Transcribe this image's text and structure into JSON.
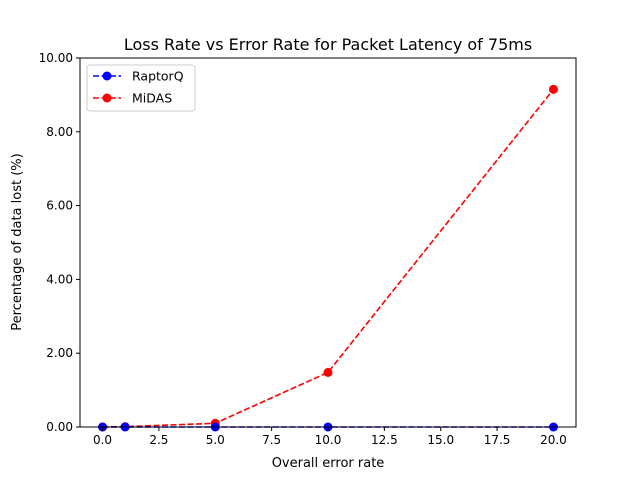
{
  "chart_data": {
    "type": "line",
    "title": "Loss Rate vs Error Rate for Packet Latency of 75ms",
    "xlabel": "Overall error rate",
    "ylabel": "Percentage of data lost (%)",
    "xlim": [
      -1.0,
      21.0
    ],
    "ylim": [
      0.0,
      10.0
    ],
    "x_ticks": [
      0.0,
      2.5,
      5.0,
      7.5,
      10.0,
      12.5,
      15.0,
      17.5,
      20.0
    ],
    "x_tick_labels": [
      "0.0",
      "2.5",
      "5.0",
      "7.5",
      "10.0",
      "12.5",
      "15.0",
      "17.5",
      "20.0"
    ],
    "y_ticks": [
      0.0,
      2.0,
      4.0,
      6.0,
      8.0,
      10.0
    ],
    "y_tick_labels": [
      "0.00",
      "2.00",
      "4.00",
      "6.00",
      "8.00",
      "10.00"
    ],
    "legend_position": "top-left",
    "grid": false,
    "series": [
      {
        "name": "RaptorQ",
        "color": "#0000ff",
        "linestyle": "dashed",
        "marker": "circle",
        "x": [
          0,
          1,
          5,
          10,
          20
        ],
        "y": [
          0.0,
          0.0,
          0.0,
          0.0,
          0.0
        ]
      },
      {
        "name": "MiDAS",
        "color": "#ff0000",
        "linestyle": "dashed",
        "marker": "circle",
        "x": [
          0,
          1,
          5,
          10,
          20
        ],
        "y": [
          0.0,
          0.01,
          0.1,
          1.48,
          9.15
        ]
      }
    ]
  }
}
